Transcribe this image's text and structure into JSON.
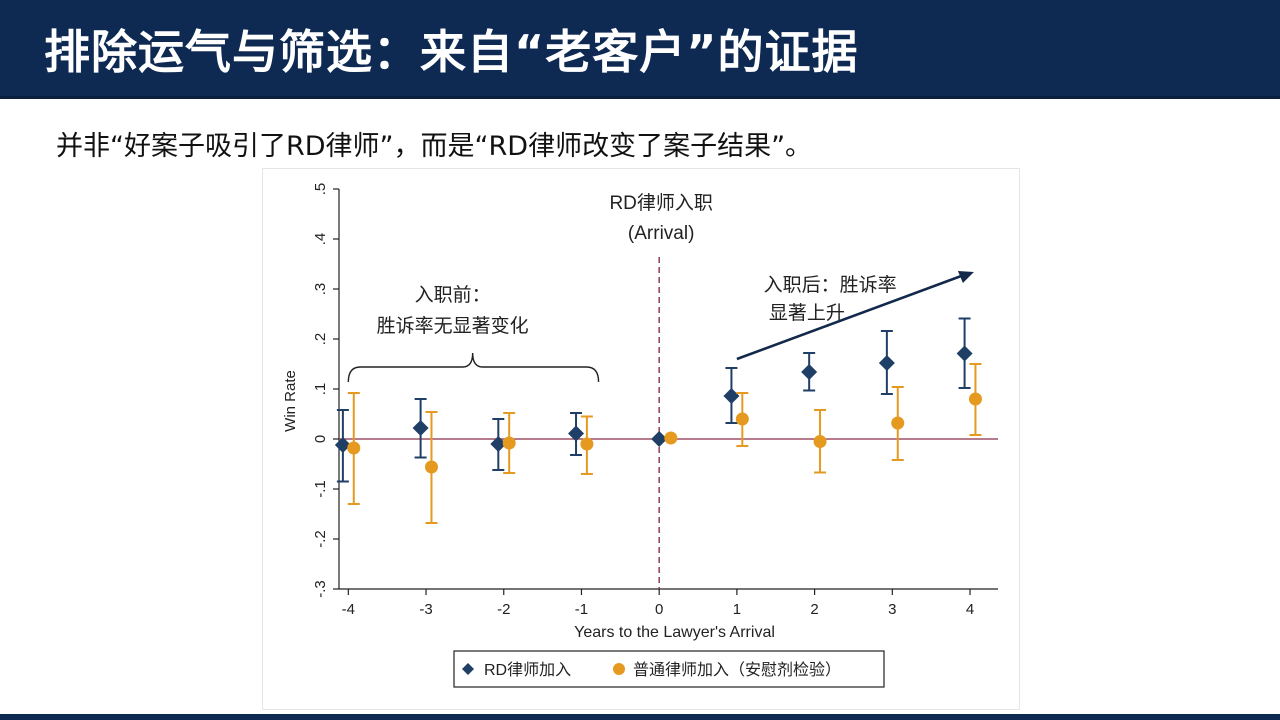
{
  "slide": {
    "title": "排除运气与筛选：来自“老客户”的证据",
    "subtitle": "并非“好案子吸引了RD律师”，而是“RD律师改变了案子结果”。"
  },
  "colors": {
    "header_bg": "#0e2a52",
    "series_rd": "#1f3f66",
    "series_ordinary": "#e59a1f",
    "zero_line": "#8b2f4a",
    "vline": "#8b2f4a",
    "arrow": "#13294b"
  },
  "chart_data": {
    "type": "scatter",
    "subtype": "coefficient plot with 95% CI",
    "xlabel": "Years to the Lawyer's Arrival",
    "ylabel": "Win Rate",
    "xlim": [
      -4,
      4
    ],
    "ylim": [
      -0.3,
      0.5
    ],
    "x_ticks": [
      "-4",
      "-3",
      "-2",
      "-1",
      "0",
      "1",
      "2",
      "3",
      "4"
    ],
    "y_ticks": [
      {
        "value": -0.3,
        "label": "-.3"
      },
      {
        "value": -0.2,
        "label": "-.2"
      },
      {
        "value": -0.1,
        "label": "-.1"
      },
      {
        "value": 0,
        "label": "0"
      },
      {
        "value": 0.1,
        "label": ".1"
      },
      {
        "value": 0.2,
        "label": ".2"
      },
      {
        "value": 0.3,
        "label": ".3"
      },
      {
        "value": 0.4,
        "label": ".4"
      },
      {
        "value": 0.5,
        "label": ".5"
      }
    ],
    "grid": false,
    "legend_position": "bottom",
    "series": [
      {
        "name": "RD律师加入",
        "marker": "diamond",
        "points": [
          {
            "x": -4,
            "y": -0.012,
            "lo": -0.085,
            "hi": 0.058
          },
          {
            "x": -3,
            "y": 0.022,
            "lo": -0.037,
            "hi": 0.08
          },
          {
            "x": -2,
            "y": -0.01,
            "lo": -0.062,
            "hi": 0.04
          },
          {
            "x": -1,
            "y": 0.011,
            "lo": -0.032,
            "hi": 0.052
          },
          {
            "x": 0,
            "y": 0.0
          },
          {
            "x": 1,
            "y": 0.086,
            "lo": 0.032,
            "hi": 0.142
          },
          {
            "x": 2,
            "y": 0.134,
            "lo": 0.097,
            "hi": 0.172
          },
          {
            "x": 3,
            "y": 0.152,
            "lo": 0.09,
            "hi": 0.216
          },
          {
            "x": 4,
            "y": 0.171,
            "lo": 0.102,
            "hi": 0.241
          }
        ]
      },
      {
        "name": "普通律师加入（安慰剂检验）",
        "marker": "circle",
        "points": [
          {
            "x": -4,
            "y": -0.018,
            "lo": -0.13,
            "hi": 0.092
          },
          {
            "x": -3,
            "y": -0.056,
            "lo": -0.168,
            "hi": 0.054
          },
          {
            "x": -2,
            "y": -0.008,
            "lo": -0.068,
            "hi": 0.052
          },
          {
            "x": -1,
            "y": -0.01,
            "lo": -0.07,
            "hi": 0.045
          },
          {
            "x": 0,
            "y": 0.002
          },
          {
            "x": 1,
            "y": 0.04,
            "lo": -0.014,
            "hi": 0.092
          },
          {
            "x": 2,
            "y": -0.005,
            "lo": -0.067,
            "hi": 0.058
          },
          {
            "x": 3,
            "y": 0.032,
            "lo": -0.042,
            "hi": 0.104
          },
          {
            "x": 4,
            "y": 0.08,
            "lo": 0.008,
            "hi": 0.15
          }
        ]
      }
    ],
    "annotations": {
      "arrival": [
        "RD律师入职",
        "(Arrival)"
      ],
      "before": [
        "入职前：",
        "胜诉率无显著变化"
      ],
      "after": [
        "入职后：胜诉率",
        "显著上升"
      ]
    }
  }
}
